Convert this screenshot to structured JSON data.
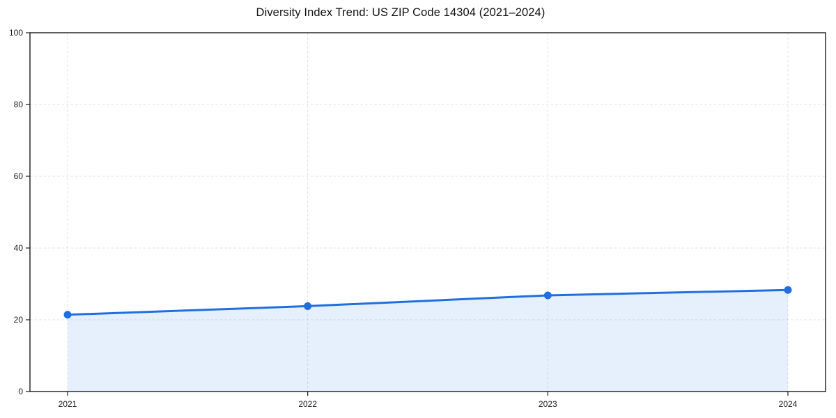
{
  "page": {
    "background_color": "#ffffff"
  },
  "chart_data": {
    "type": "area",
    "title": "Diversity Index Trend: US ZIP Code 14304 (2021–2024)",
    "categories": [
      "2021",
      "2022",
      "2023",
      "2024"
    ],
    "series": [
      {
        "name": "Diversity Index",
        "values": [
          21.4,
          23.8,
          26.8,
          28.3
        ]
      }
    ],
    "xlabel": "",
    "ylabel": "",
    "ylim": [
      0,
      100
    ],
    "yticks": [
      0,
      20,
      40,
      60,
      80,
      100
    ],
    "grid": "dashed horizontal and vertical gridlines",
    "legend": "none",
    "colors": {
      "line": "#1f6fe0",
      "marker": "#1f6fe0",
      "fill": "#1f6fe0",
      "fill_opacity": 0.11,
      "grid": "#e2e2e2",
      "axis": "#1a1a1a",
      "tick_label": "#1a1a1a",
      "title_text": "#111111"
    }
  }
}
